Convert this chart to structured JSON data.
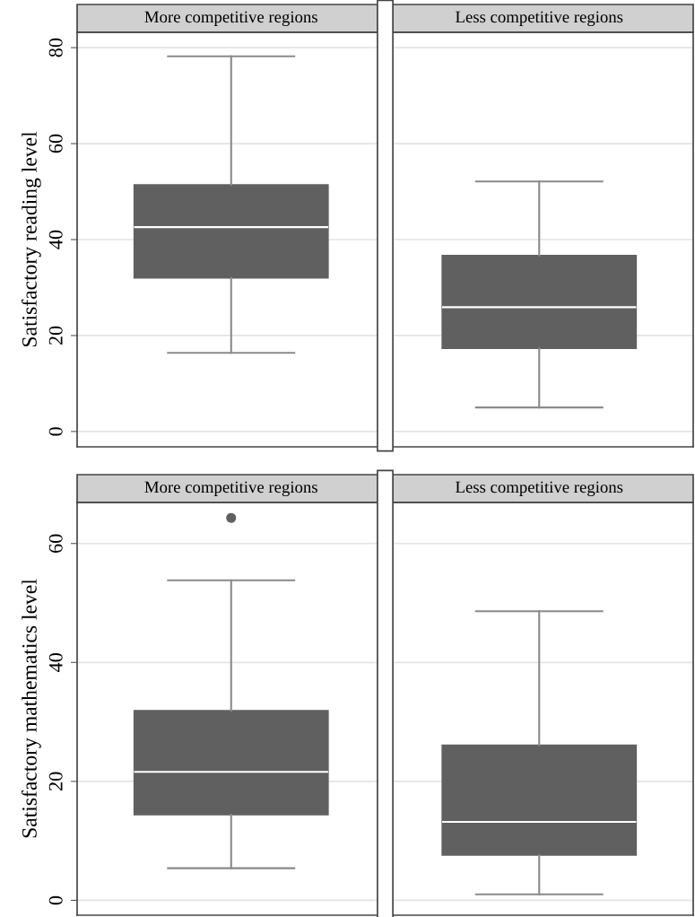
{
  "chart_data": [
    {
      "type": "box",
      "ylabel": "Satisfactory reading level",
      "categories": [
        "More competitive regions",
        "Less competitive regions"
      ],
      "color": "#606060",
      "boxes": [
        {
          "low": 16.4,
          "q1": 32.0,
          "median": 42.6,
          "q3": 51.4,
          "high": 78.2
        },
        {
          "low": 5.0,
          "q1": 17.3,
          "median": 25.9,
          "q3": 36.7,
          "high": 52.1
        }
      ],
      "ylim": [
        -3.2,
        83.2
      ],
      "yticks": [
        0,
        20,
        40,
        60,
        80
      ],
      "grid": "y"
    },
    {
      "type": "box",
      "ylabel": "Satisfactory mathematics level",
      "categories": [
        "More competitive regions",
        "Less competitive regions"
      ],
      "color": "#606060",
      "boxes": [
        {
          "low": 5.4,
          "q1": 14.4,
          "median": 21.6,
          "q3": 31.9,
          "high": 53.8,
          "outliers": [
            64.3
          ]
        },
        {
          "low": 1.0,
          "q1": 7.6,
          "median": 13.2,
          "q3": 26.1,
          "high": 48.6
        }
      ],
      "ylim": [
        -2.5,
        66.9
      ],
      "yticks": [
        0,
        20,
        40,
        60
      ],
      "grid": "y"
    }
  ]
}
